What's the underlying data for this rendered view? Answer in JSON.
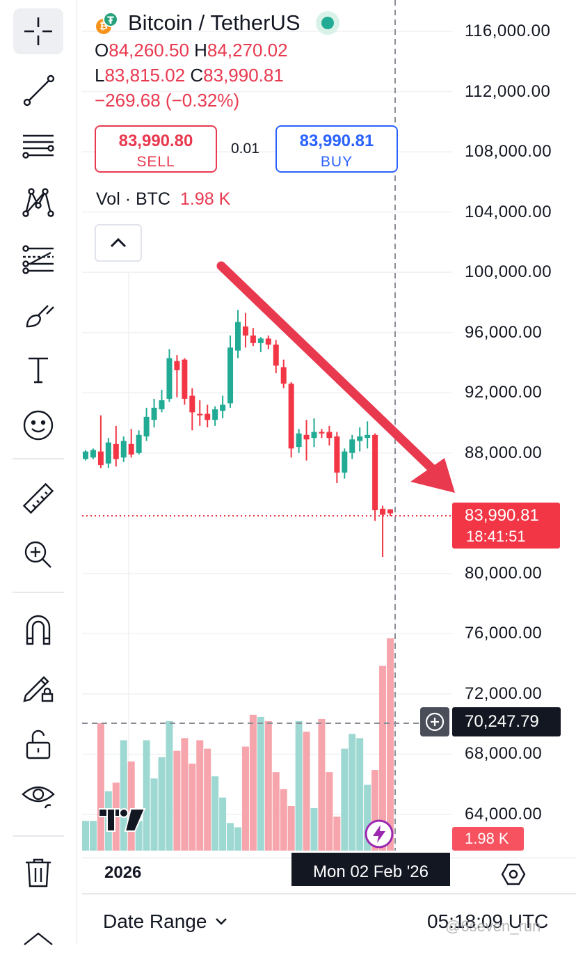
{
  "symbol": {
    "title": "Bitcoin / TetherUS",
    "base_icon": "bitcoin-icon",
    "quote_icon": "tether-icon"
  },
  "ohlc": {
    "o_label": "O",
    "o_value": "84,260.50",
    "h_label": "H",
    "h_value": "84,270.02",
    "l_label": "L",
    "l_value": "83,815.02",
    "c_label": "C",
    "c_value": "83,990.81",
    "change": "−269.68 (−0.32%)"
  },
  "trade": {
    "sell_price": "83,990.80",
    "sell_label": "SELL",
    "spread": "0.01",
    "buy_price": "83,990.81",
    "buy_label": "BUY"
  },
  "volume_legend": {
    "label": "Vol · BTC",
    "value": "1.98 K"
  },
  "price_scale": {
    "current_price": "83,990.81",
    "countdown": "18:41:51",
    "crosshair_price": "70,247.79",
    "volume_tag": "1.98 K"
  },
  "time_axis": {
    "label": "2026",
    "crosshair_date": "Mon 02 Feb '26"
  },
  "bottom_bar": {
    "date_range": "Date Range",
    "clock": "05:18:09 UTC",
    "watermark": "@6seven_run"
  },
  "colors": {
    "up": "#22ab94",
    "down": "#f23645",
    "up_vol": "#9ed8d2",
    "down_vol": "#f5a5ab",
    "arrow": "#e8394f"
  },
  "toolbar": [
    "crosshair-icon",
    "trend-line-icon",
    "fib-retracement-icon",
    "pattern-icon",
    "prediction-icon",
    "brush-icon",
    "text-icon",
    "emoji-icon",
    "ruler-icon",
    "zoom-in-icon",
    "magnet-icon",
    "lock-drawing-icon",
    "unlock-icon",
    "eye-icon",
    "trash-icon",
    "chevron-up-icon"
  ],
  "chart_data": {
    "type": "candlestick",
    "symbol": "BTC/USDT",
    "y_ticks": [
      "116,000.00",
      "112,000.00",
      "108,000.00",
      "104,000.00",
      "100,000.00",
      "96,000.00",
      "92,000.00",
      "88,000.00",
      "80,000.00",
      "76,000.00",
      "72,000.00",
      "68,000.00",
      "64,000.00"
    ],
    "y_tick_values": [
      116000,
      112000,
      108000,
      104000,
      100000,
      96000,
      92000,
      88000,
      80000,
      76000,
      72000,
      68000,
      64000
    ],
    "ylim": [
      61700,
      117000
    ],
    "candles": [
      {
        "o": 87600,
        "h": 88200,
        "l": 87500,
        "c": 88100
      },
      {
        "o": 87700,
        "h": 88300,
        "l": 87600,
        "c": 88200
      },
      {
        "o": 88100,
        "h": 90500,
        "l": 87000,
        "c": 87200
      },
      {
        "o": 87300,
        "h": 89000,
        "l": 87000,
        "c": 88700
      },
      {
        "o": 88600,
        "h": 89800,
        "l": 87100,
        "c": 87600
      },
      {
        "o": 87700,
        "h": 89100,
        "l": 87400,
        "c": 88800
      },
      {
        "o": 88600,
        "h": 89600,
        "l": 87700,
        "c": 87900
      },
      {
        "o": 88000,
        "h": 89500,
        "l": 87900,
        "c": 89200
      },
      {
        "o": 89100,
        "h": 91000,
        "l": 88800,
        "c": 90400
      },
      {
        "o": 90200,
        "h": 91600,
        "l": 89700,
        "c": 91000
      },
      {
        "o": 90900,
        "h": 92200,
        "l": 90700,
        "c": 91500
      },
      {
        "o": 91600,
        "h": 94900,
        "l": 91400,
        "c": 94300
      },
      {
        "o": 94100,
        "h": 94500,
        "l": 91700,
        "c": 93500
      },
      {
        "o": 94200,
        "h": 94300,
        "l": 91200,
        "c": 91600
      },
      {
        "o": 91800,
        "h": 92300,
        "l": 89500,
        "c": 90700
      },
      {
        "o": 90600,
        "h": 91500,
        "l": 89800,
        "c": 90500
      },
      {
        "o": 90600,
        "h": 91200,
        "l": 89700,
        "c": 90200
      },
      {
        "o": 90200,
        "h": 91100,
        "l": 89800,
        "c": 90900
      },
      {
        "o": 90800,
        "h": 91800,
        "l": 90300,
        "c": 91200
      },
      {
        "o": 91300,
        "h": 95800,
        "l": 91000,
        "c": 95000
      },
      {
        "o": 94800,
        "h": 97500,
        "l": 94300,
        "c": 96700
      },
      {
        "o": 96400,
        "h": 97300,
        "l": 95000,
        "c": 95800
      },
      {
        "o": 95800,
        "h": 96300,
        "l": 95100,
        "c": 95300
      },
      {
        "o": 95300,
        "h": 95700,
        "l": 94700,
        "c": 95600
      },
      {
        "o": 95600,
        "h": 95800,
        "l": 94900,
        "c": 95200
      },
      {
        "o": 95200,
        "h": 95500,
        "l": 93300,
        "c": 93800
      },
      {
        "o": 93700,
        "h": 94200,
        "l": 92300,
        "c": 92600
      },
      {
        "o": 92600,
        "h": 92700,
        "l": 87700,
        "c": 88300
      },
      {
        "o": 88400,
        "h": 89600,
        "l": 88000,
        "c": 89300
      },
      {
        "o": 89200,
        "h": 90200,
        "l": 87500,
        "c": 88900
      },
      {
        "o": 89000,
        "h": 90300,
        "l": 88400,
        "c": 89400
      },
      {
        "o": 89400,
        "h": 89600,
        "l": 89000,
        "c": 89300
      },
      {
        "o": 89400,
        "h": 89800,
        "l": 88500,
        "c": 89000
      },
      {
        "o": 89100,
        "h": 89400,
        "l": 86000,
        "c": 86700
      },
      {
        "o": 86700,
        "h": 88300,
        "l": 86300,
        "c": 88100
      },
      {
        "o": 88000,
        "h": 89200,
        "l": 87600,
        "c": 88900
      },
      {
        "o": 88800,
        "h": 89700,
        "l": 88100,
        "c": 89100
      },
      {
        "o": 89000,
        "h": 90100,
        "l": 88300,
        "c": 89200
      },
      {
        "o": 89200,
        "h": 89300,
        "l": 83500,
        "c": 84200
      },
      {
        "o": 84300,
        "h": 84500,
        "l": 81100,
        "c": 83900
      },
      {
        "o": 84260.5,
        "h": 84270.02,
        "l": 83815.02,
        "c": 83990.81
      }
    ],
    "volume_ylim": [
      0,
      1000
    ],
    "volume": [
      140,
      140,
      600,
      280,
      320,
      520,
      420,
      140,
      520,
      340,
      440,
      610,
      470,
      530,
      410,
      520,
      480,
      350,
      250,
      130,
      110,
      490,
      640,
      630,
      610,
      370,
      290,
      210,
      610,
      560,
      200,
      620,
      370,
      160,
      480,
      550,
      530,
      310,
      380,
      870,
      1000
    ],
    "last_price": 83990.81,
    "crosshair_price": 70247.79
  }
}
